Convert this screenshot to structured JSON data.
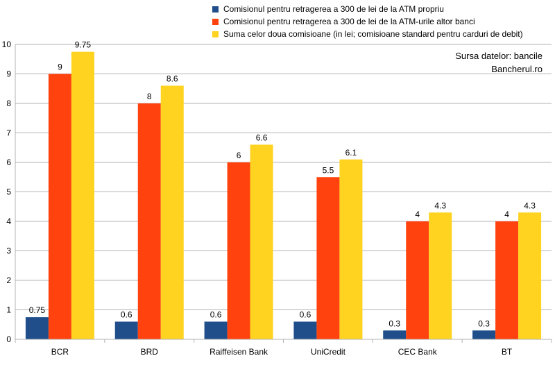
{
  "colors": {
    "series1": "#1f4e8a",
    "series2": "#ff420e",
    "series3": "#ffd320",
    "grid": "#b3b3b3"
  },
  "source": {
    "line1": "Sursa datelor: bancile",
    "line2": "Bancherul.ro"
  },
  "chart_data": {
    "type": "bar",
    "title": "",
    "xlabel": "",
    "ylabel": "",
    "ylim": [
      0,
      10
    ],
    "yticks": [
      0,
      1,
      2,
      3,
      4,
      5,
      6,
      7,
      8,
      9,
      10
    ],
    "grid": "horizontal",
    "legend_position": "top-right",
    "categories": [
      "BCR",
      "BRD",
      "Raiffeisen Bank",
      "UniCredit",
      "CEC Bank",
      "BT"
    ],
    "series": [
      {
        "name": "Comisionul pentru retragerea a 300 de lei de la ATM propriu",
        "values": [
          0.75,
          0.6,
          0.6,
          0.6,
          0.3,
          0.3
        ],
        "labels": [
          "0.75",
          "0.6",
          "0.6",
          "0.6",
          "0.3",
          "0.3"
        ]
      },
      {
        "name": "Comisionul pentru retragerea a 300 de lei de la ATM-urile altor banci",
        "values": [
          9,
          8,
          6,
          5.5,
          4,
          4
        ],
        "labels": [
          "9",
          "8",
          "6",
          "5.5",
          "4",
          "4"
        ]
      },
      {
        "name": "Suma celor doua comisioane (in lei; comisioane standard pentru carduri de debit)",
        "values": [
          9.75,
          8.6,
          6.6,
          6.1,
          4.3,
          4.3
        ],
        "labels": [
          "9.75",
          "8.6",
          "6.6",
          "6.1",
          "4.3",
          "4.3"
        ]
      }
    ]
  }
}
